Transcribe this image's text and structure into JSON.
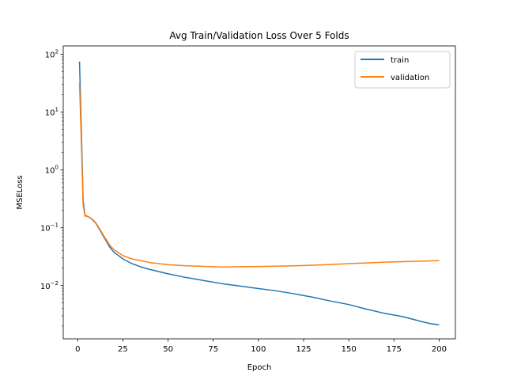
{
  "chart_data": {
    "type": "line",
    "title": "Avg Train/Validation Loss Over 5 Folds",
    "xlabel": "Epoch",
    "ylabel": "MSELoss",
    "xlim": [
      -8,
      209
    ],
    "ylim": [
      0.0012,
      140
    ],
    "yscale": "log",
    "xticks": [
      0,
      25,
      50,
      75,
      100,
      125,
      150,
      175,
      200
    ],
    "yticks": [
      {
        "value": 0.01,
        "base": "10",
        "exp": "−2"
      },
      {
        "value": 0.1,
        "base": "10",
        "exp": "−1"
      },
      {
        "value": 1,
        "base": "10",
        "exp": "0"
      },
      {
        "value": 10,
        "base": "10",
        "exp": "1"
      },
      {
        "value": 100,
        "base": "10",
        "exp": "2"
      }
    ],
    "grid": false,
    "legend_position": "top-right",
    "series": [
      {
        "name": "train",
        "color": "#1f77b4",
        "x": [
          1,
          2,
          3,
          4,
          5,
          6,
          8,
          10,
          12,
          15,
          18,
          20,
          25,
          30,
          35,
          40,
          50,
          60,
          70,
          80,
          90,
          100,
          110,
          120,
          130,
          140,
          150,
          160,
          170,
          180,
          190,
          195,
          200
        ],
        "y": [
          75,
          5,
          0.3,
          0.165,
          0.16,
          0.155,
          0.14,
          0.12,
          0.095,
          0.065,
          0.045,
          0.038,
          0.029,
          0.024,
          0.021,
          0.019,
          0.016,
          0.0138,
          0.0122,
          0.0108,
          0.0098,
          0.0089,
          0.0081,
          0.0072,
          0.0063,
          0.0054,
          0.0047,
          0.0039,
          0.0033,
          0.0029,
          0.0024,
          0.0022,
          0.0021
        ]
      },
      {
        "name": "validation",
        "color": "#ff7f0e",
        "x": [
          1,
          2,
          3,
          4,
          5,
          6,
          8,
          10,
          12,
          15,
          18,
          20,
          25,
          30,
          35,
          40,
          50,
          60,
          70,
          80,
          90,
          100,
          110,
          120,
          130,
          140,
          150,
          160,
          170,
          180,
          190,
          200
        ],
        "y": [
          32,
          3,
          0.25,
          0.16,
          0.158,
          0.155,
          0.142,
          0.122,
          0.098,
          0.068,
          0.049,
          0.042,
          0.033,
          0.029,
          0.027,
          0.025,
          0.023,
          0.022,
          0.0215,
          0.021,
          0.0212,
          0.0214,
          0.0217,
          0.022,
          0.0225,
          0.0232,
          0.024,
          0.0247,
          0.0255,
          0.026,
          0.0265,
          0.027
        ]
      }
    ]
  }
}
